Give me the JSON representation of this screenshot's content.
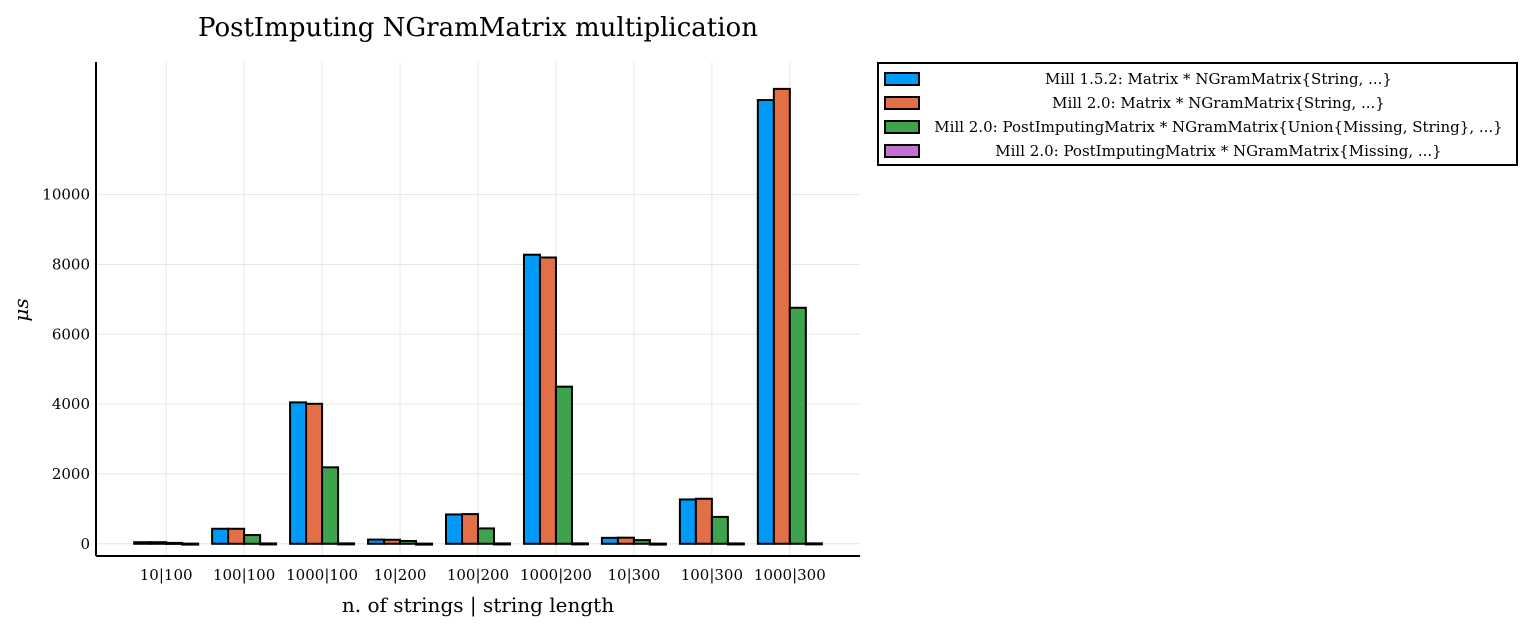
{
  "chart_data": {
    "type": "bar",
    "title": "PostImputing NGramMatrix multiplication",
    "xlabel": "n. of strings | string length",
    "ylabel": "μs",
    "categories": [
      "10|100",
      "100|100",
      "1000|100",
      "10|200",
      "100|200",
      "1000|200",
      "10|300",
      "100|300",
      "1000|300"
    ],
    "yticks": [
      0,
      2000,
      4000,
      6000,
      8000,
      10000
    ],
    "ylim": [
      -350,
      13800
    ],
    "grid": true,
    "legend_position": "outside-top-right",
    "series": [
      {
        "name": "Mill 1.5.2: Matrix * NGramMatrix{String, ...}",
        "color": "#009af9",
        "values": [
          45,
          430,
          4050,
          120,
          840,
          8280,
          170,
          1270,
          12710
        ]
      },
      {
        "name": "Mill 2.0: Matrix * NGramMatrix{String, ...}",
        "color": "#e26f46",
        "values": [
          45,
          430,
          4010,
          115,
          850,
          8200,
          175,
          1290,
          13030
        ]
      },
      {
        "name": "Mill 2.0: PostImputingMatrix * NGramMatrix{Union{Missing, String}, ...}",
        "color": "#3da44d",
        "values": [
          25,
          250,
          2190,
          80,
          440,
          4500,
          105,
          770,
          6760
        ]
      },
      {
        "name": "Mill 2.0: PostImputingMatrix * NGramMatrix{Missing, ...}",
        "color": "#c271d2",
        "values": [
          5,
          10,
          12,
          5,
          10,
          12,
          5,
          10,
          12
        ]
      }
    ]
  }
}
